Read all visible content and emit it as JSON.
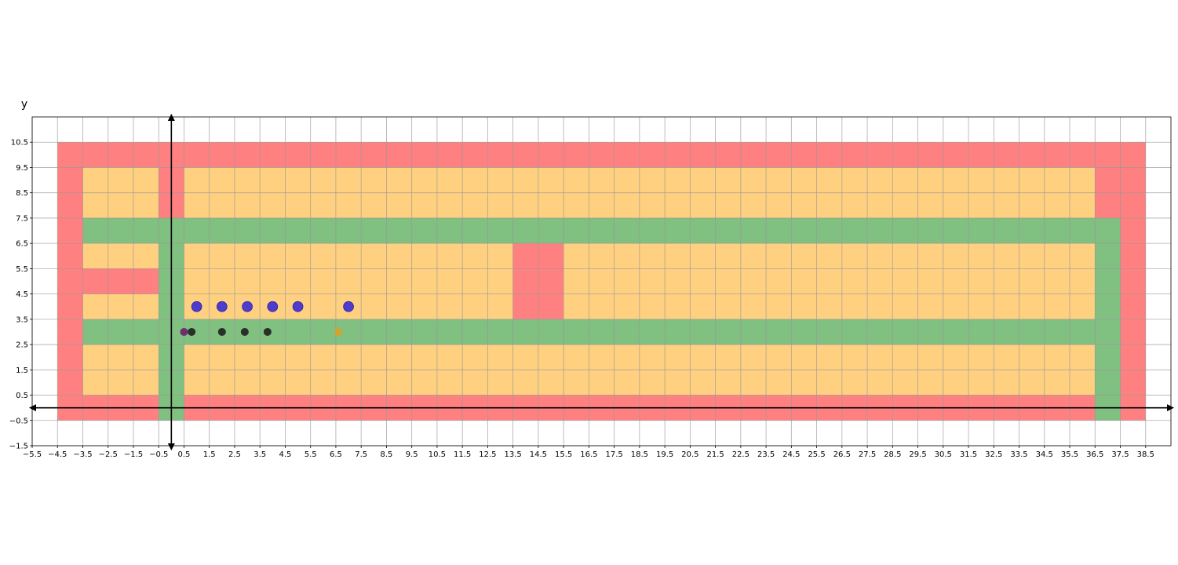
{
  "chart_data": {
    "type": "scatter",
    "title": "",
    "xlabel": "",
    "ylabel": "y",
    "xlim": [
      -5.5,
      39.5
    ],
    "ylim": [
      -1.5,
      11.5
    ],
    "x_ticks": [
      -5.5,
      -4.5,
      -3.5,
      -2.5,
      -1.5,
      -0.5,
      0.5,
      1.5,
      2.5,
      3.5,
      4.5,
      5.5,
      6.5,
      7.5,
      8.5,
      9.5,
      10.5,
      11.5,
      12.5,
      13.5,
      14.5,
      15.5,
      16.5,
      17.5,
      18.5,
      19.5,
      20.5,
      21.5,
      22.5,
      23.5,
      24.5,
      25.5,
      26.5,
      27.5,
      28.5,
      29.5,
      30.5,
      31.5,
      32.5,
      33.5,
      34.5,
      35.5,
      36.5,
      37.5,
      38.5
    ],
    "x_tick_labels": [
      "−5.5",
      "−4.5",
      "−3.5",
      "−2.5",
      "−1.5",
      "−0.5",
      "0.5",
      "1.5",
      "2.5",
      "3.5",
      "4.5",
      "5.5",
      "6.5",
      "7.5",
      "8.5",
      "9.5",
      "10.5",
      "11.5",
      "12.5",
      "13.5",
      "14.5",
      "15.5",
      "16.5",
      "17.5",
      "18.5",
      "19.5",
      "20.5",
      "21.5",
      "22.5",
      "23.5",
      "24.5",
      "25.5",
      "26.5",
      "27.5",
      "28.5",
      "29.5",
      "30.5",
      "31.5",
      "32.5",
      "33.5",
      "34.5",
      "35.5",
      "36.5",
      "37.5",
      "38.5"
    ],
    "y_ticks": [
      -1.5,
      -0.5,
      0.5,
      1.5,
      2.5,
      3.5,
      4.5,
      5.5,
      6.5,
      7.5,
      8.5,
      9.5,
      10.5
    ],
    "y_tick_labels": [
      "−1.5",
      "−0.5",
      "0.5",
      "1.5",
      "2.5",
      "3.5",
      "4.5",
      "5.5",
      "6.5",
      "7.5",
      "8.5",
      "9.5",
      "10.5"
    ],
    "grid": true,
    "colors": {
      "wall": "#ff8080",
      "floor": "#ffd080",
      "path": "#80c080",
      "agent": "#3a2bd6",
      "dark_marker": "#1f1f1f",
      "start": "#6a1f6a",
      "goal": "#e0a020",
      "axis": "#000000",
      "grid": "#999999"
    },
    "regions": [
      {
        "kind": "wall",
        "x": [
          -4.5,
          38.5
        ],
        "y": [
          -0.5,
          10.5
        ]
      },
      {
        "kind": "floor",
        "x": [
          -3.5,
          36.5
        ],
        "y": [
          0.5,
          9.5
        ]
      },
      {
        "kind": "wall",
        "x": [
          -0.5,
          0.5
        ],
        "y": [
          7.5,
          9.5
        ]
      },
      {
        "kind": "wall",
        "x": [
          36.5,
          37.5
        ],
        "y": [
          7.5,
          9.5
        ]
      },
      {
        "kind": "wall",
        "x": [
          -3.5,
          -0.5
        ],
        "y": [
          4.5,
          5.5
        ]
      },
      {
        "kind": "wall",
        "x": [
          13.5,
          15.5
        ],
        "y": [
          3.5,
          6.5
        ]
      },
      {
        "kind": "path",
        "x": [
          -3.5,
          37.5
        ],
        "y": [
          6.5,
          7.5
        ]
      },
      {
        "kind": "path",
        "x": [
          -3.5,
          36.5
        ],
        "y": [
          2.5,
          3.5
        ]
      },
      {
        "kind": "path",
        "x": [
          -0.5,
          0.5
        ],
        "y": [
          -0.5,
          7.5
        ]
      },
      {
        "kind": "path",
        "x": [
          36.5,
          37.5
        ],
        "y": [
          -0.5,
          7.5
        ]
      }
    ],
    "series": [
      {
        "role": "agent",
        "x": [
          1,
          2,
          3,
          4,
          5,
          7
        ],
        "y": [
          4,
          4,
          4,
          4,
          4,
          4
        ]
      },
      {
        "role": "dark_marker",
        "x": [
          0.8,
          2,
          2.9,
          3.8
        ],
        "y": [
          3,
          3,
          3,
          3
        ]
      },
      {
        "role": "start",
        "x": [
          0.5
        ],
        "y": [
          3
        ]
      },
      {
        "role": "goal",
        "x": [
          6.6
        ],
        "y": [
          3
        ]
      }
    ]
  }
}
